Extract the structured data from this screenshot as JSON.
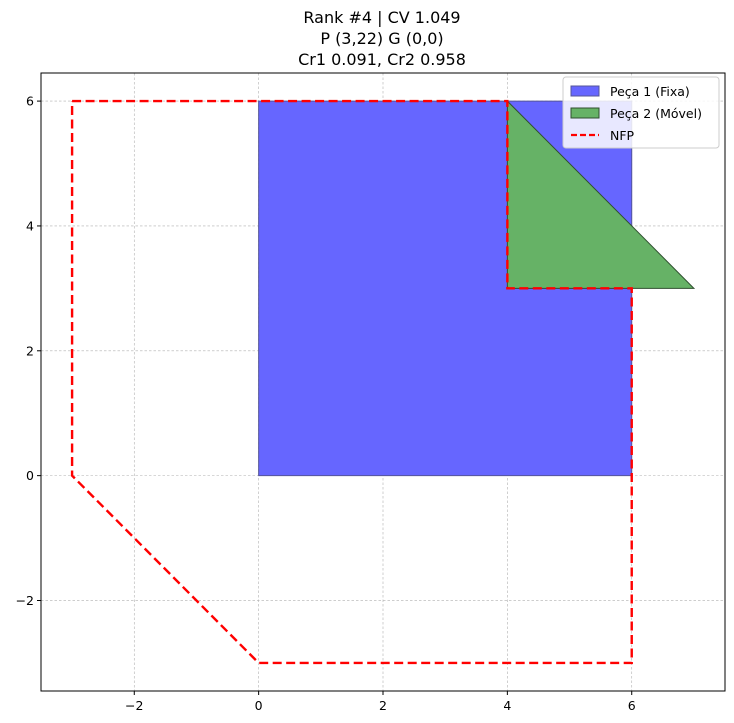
{
  "chart_data": {
    "type": "polygon-plot",
    "title": [
      "Rank #4 | CV 1.049",
      "P (3,22) G (0,0)",
      "Cr1 0.091, Cr2 0.958"
    ],
    "xlim": [
      -3.5,
      7.5
    ],
    "ylim": [
      -3.45,
      6.45
    ],
    "xticks": [
      -2,
      0,
      2,
      4,
      6
    ],
    "yticks": [
      -2,
      0,
      2,
      4,
      6
    ],
    "xtick_labels": [
      "−2",
      "0",
      "2",
      "4",
      "6"
    ],
    "ytick_labels": [
      "−2",
      "0",
      "2",
      "4",
      "6"
    ],
    "grid": true,
    "legend_position": "top-right",
    "series": [
      {
        "name": "Peça 1 (Fixa)",
        "kind": "filled-polygon",
        "color": "#6666ff",
        "edge": "#555599",
        "points": [
          [
            0,
            0
          ],
          [
            6,
            0
          ],
          [
            6,
            6
          ],
          [
            0,
            6
          ]
        ]
      },
      {
        "name": "Peça 2 (Móvel)",
        "kind": "filled-polygon",
        "color": "#66b266",
        "edge": "#2f4f2f",
        "points": [
          [
            4,
            3
          ],
          [
            7,
            3
          ],
          [
            4,
            6
          ]
        ]
      },
      {
        "name": "NFP",
        "kind": "dashed-line",
        "color": "#ff0000",
        "points": [
          [
            -3,
            6
          ],
          [
            4,
            6
          ],
          [
            4,
            3
          ],
          [
            6,
            3
          ],
          [
            6,
            -3
          ],
          [
            0,
            -3
          ],
          [
            -3,
            0
          ],
          [
            -3,
            6
          ]
        ]
      }
    ]
  }
}
